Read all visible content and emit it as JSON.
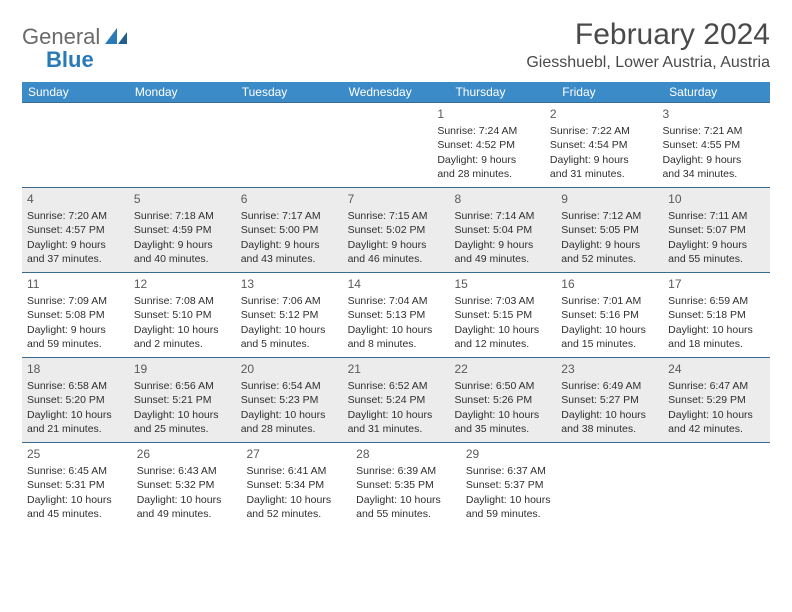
{
  "brand": {
    "word1": "General",
    "word2": "Blue"
  },
  "title": "February 2024",
  "location": "Giesshuebl, Lower Austria, Austria",
  "colors": {
    "header_bg": "#3b8bc8",
    "week_border": "#3b6a8f",
    "shade": "#ececec",
    "logo_blue": "#2a7ab8"
  },
  "dow": [
    "Sunday",
    "Monday",
    "Tuesday",
    "Wednesday",
    "Thursday",
    "Friday",
    "Saturday"
  ],
  "weeks": [
    {
      "shaded": false,
      "days": [
        null,
        null,
        null,
        null,
        {
          "n": "1",
          "sr": "Sunrise: 7:24 AM",
          "ss": "Sunset: 4:52 PM",
          "d1": "Daylight: 9 hours",
          "d2": "and 28 minutes."
        },
        {
          "n": "2",
          "sr": "Sunrise: 7:22 AM",
          "ss": "Sunset: 4:54 PM",
          "d1": "Daylight: 9 hours",
          "d2": "and 31 minutes."
        },
        {
          "n": "3",
          "sr": "Sunrise: 7:21 AM",
          "ss": "Sunset: 4:55 PM",
          "d1": "Daylight: 9 hours",
          "d2": "and 34 minutes."
        }
      ]
    },
    {
      "shaded": true,
      "days": [
        {
          "n": "4",
          "sr": "Sunrise: 7:20 AM",
          "ss": "Sunset: 4:57 PM",
          "d1": "Daylight: 9 hours",
          "d2": "and 37 minutes."
        },
        {
          "n": "5",
          "sr": "Sunrise: 7:18 AM",
          "ss": "Sunset: 4:59 PM",
          "d1": "Daylight: 9 hours",
          "d2": "and 40 minutes."
        },
        {
          "n": "6",
          "sr": "Sunrise: 7:17 AM",
          "ss": "Sunset: 5:00 PM",
          "d1": "Daylight: 9 hours",
          "d2": "and 43 minutes."
        },
        {
          "n": "7",
          "sr": "Sunrise: 7:15 AM",
          "ss": "Sunset: 5:02 PM",
          "d1": "Daylight: 9 hours",
          "d2": "and 46 minutes."
        },
        {
          "n": "8",
          "sr": "Sunrise: 7:14 AM",
          "ss": "Sunset: 5:04 PM",
          "d1": "Daylight: 9 hours",
          "d2": "and 49 minutes."
        },
        {
          "n": "9",
          "sr": "Sunrise: 7:12 AM",
          "ss": "Sunset: 5:05 PM",
          "d1": "Daylight: 9 hours",
          "d2": "and 52 minutes."
        },
        {
          "n": "10",
          "sr": "Sunrise: 7:11 AM",
          "ss": "Sunset: 5:07 PM",
          "d1": "Daylight: 9 hours",
          "d2": "and 55 minutes."
        }
      ]
    },
    {
      "shaded": false,
      "days": [
        {
          "n": "11",
          "sr": "Sunrise: 7:09 AM",
          "ss": "Sunset: 5:08 PM",
          "d1": "Daylight: 9 hours",
          "d2": "and 59 minutes."
        },
        {
          "n": "12",
          "sr": "Sunrise: 7:08 AM",
          "ss": "Sunset: 5:10 PM",
          "d1": "Daylight: 10 hours",
          "d2": "and 2 minutes."
        },
        {
          "n": "13",
          "sr": "Sunrise: 7:06 AM",
          "ss": "Sunset: 5:12 PM",
          "d1": "Daylight: 10 hours",
          "d2": "and 5 minutes."
        },
        {
          "n": "14",
          "sr": "Sunrise: 7:04 AM",
          "ss": "Sunset: 5:13 PM",
          "d1": "Daylight: 10 hours",
          "d2": "and 8 minutes."
        },
        {
          "n": "15",
          "sr": "Sunrise: 7:03 AM",
          "ss": "Sunset: 5:15 PM",
          "d1": "Daylight: 10 hours",
          "d2": "and 12 minutes."
        },
        {
          "n": "16",
          "sr": "Sunrise: 7:01 AM",
          "ss": "Sunset: 5:16 PM",
          "d1": "Daylight: 10 hours",
          "d2": "and 15 minutes."
        },
        {
          "n": "17",
          "sr": "Sunrise: 6:59 AM",
          "ss": "Sunset: 5:18 PM",
          "d1": "Daylight: 10 hours",
          "d2": "and 18 minutes."
        }
      ]
    },
    {
      "shaded": true,
      "days": [
        {
          "n": "18",
          "sr": "Sunrise: 6:58 AM",
          "ss": "Sunset: 5:20 PM",
          "d1": "Daylight: 10 hours",
          "d2": "and 21 minutes."
        },
        {
          "n": "19",
          "sr": "Sunrise: 6:56 AM",
          "ss": "Sunset: 5:21 PM",
          "d1": "Daylight: 10 hours",
          "d2": "and 25 minutes."
        },
        {
          "n": "20",
          "sr": "Sunrise: 6:54 AM",
          "ss": "Sunset: 5:23 PM",
          "d1": "Daylight: 10 hours",
          "d2": "and 28 minutes."
        },
        {
          "n": "21",
          "sr": "Sunrise: 6:52 AM",
          "ss": "Sunset: 5:24 PM",
          "d1": "Daylight: 10 hours",
          "d2": "and 31 minutes."
        },
        {
          "n": "22",
          "sr": "Sunrise: 6:50 AM",
          "ss": "Sunset: 5:26 PM",
          "d1": "Daylight: 10 hours",
          "d2": "and 35 minutes."
        },
        {
          "n": "23",
          "sr": "Sunrise: 6:49 AM",
          "ss": "Sunset: 5:27 PM",
          "d1": "Daylight: 10 hours",
          "d2": "and 38 minutes."
        },
        {
          "n": "24",
          "sr": "Sunrise: 6:47 AM",
          "ss": "Sunset: 5:29 PM",
          "d1": "Daylight: 10 hours",
          "d2": "and 42 minutes."
        }
      ]
    },
    {
      "shaded": false,
      "days": [
        {
          "n": "25",
          "sr": "Sunrise: 6:45 AM",
          "ss": "Sunset: 5:31 PM",
          "d1": "Daylight: 10 hours",
          "d2": "and 45 minutes."
        },
        {
          "n": "26",
          "sr": "Sunrise: 6:43 AM",
          "ss": "Sunset: 5:32 PM",
          "d1": "Daylight: 10 hours",
          "d2": "and 49 minutes."
        },
        {
          "n": "27",
          "sr": "Sunrise: 6:41 AM",
          "ss": "Sunset: 5:34 PM",
          "d1": "Daylight: 10 hours",
          "d2": "and 52 minutes."
        },
        {
          "n": "28",
          "sr": "Sunrise: 6:39 AM",
          "ss": "Sunset: 5:35 PM",
          "d1": "Daylight: 10 hours",
          "d2": "and 55 minutes."
        },
        {
          "n": "29",
          "sr": "Sunrise: 6:37 AM",
          "ss": "Sunset: 5:37 PM",
          "d1": "Daylight: 10 hours",
          "d2": "and 59 minutes."
        },
        null,
        null
      ]
    }
  ]
}
